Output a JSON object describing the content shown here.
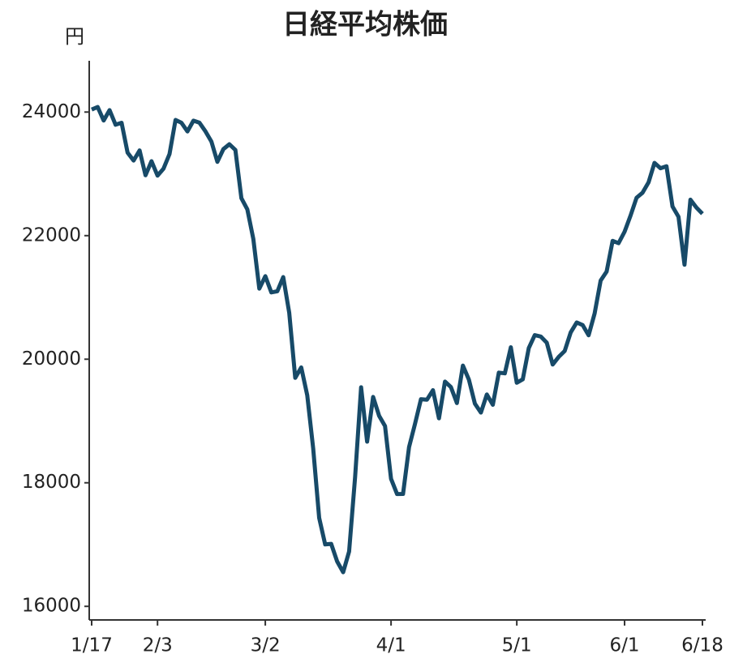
{
  "chart_data": {
    "type": "line",
    "title": "日経平均株価",
    "y_unit": "円",
    "categories": [
      "1/17",
      null,
      null,
      null,
      null,
      null,
      null,
      null,
      null,
      null,
      null,
      "2/3",
      null,
      null,
      null,
      null,
      null,
      null,
      null,
      null,
      null,
      null,
      null,
      null,
      null,
      null,
      null,
      null,
      null,
      "3/2",
      null,
      null,
      null,
      null,
      null,
      null,
      null,
      null,
      null,
      null,
      null,
      null,
      null,
      null,
      null,
      null,
      null,
      null,
      null,
      null,
      "4/1",
      null,
      null,
      null,
      null,
      null,
      null,
      null,
      null,
      null,
      null,
      null,
      null,
      null,
      null,
      null,
      null,
      null,
      null,
      null,
      null,
      "5/1",
      null,
      null,
      null,
      null,
      null,
      null,
      null,
      null,
      null,
      null,
      null,
      null,
      null,
      null,
      null,
      null,
      null,
      "6/1",
      null,
      null,
      null,
      null,
      null,
      null,
      null,
      null,
      null,
      null,
      null,
      null,
      "6/18"
    ],
    "series": [
      {
        "name": "日経平均株価",
        "color": "#174a68",
        "values": [
          24041,
          24083,
          23864,
          24031,
          23795,
          23827,
          23343,
          23216,
          23379,
          22977,
          23205,
          22971,
          23084,
          23320,
          23873,
          23827,
          23686,
          23861,
          23828,
          23687,
          23523,
          23194,
          23400,
          23479,
          23386,
          22605,
          22426,
          21948,
          21142,
          21344,
          21082,
          21100,
          21329,
          20749,
          19698,
          19867,
          19416,
          18559,
          17431,
          17002,
          17011,
          16726,
          16552,
          16887,
          18092,
          19546,
          18665,
          19389,
          19084,
          18917,
          18065,
          17818,
          17820,
          18576,
          18950,
          19353,
          19345,
          19498,
          19043,
          19638,
          19550,
          19290,
          19897,
          19669,
          19280,
          19137,
          19429,
          19262,
          19783,
          19771,
          20193,
          19619,
          19674,
          20179,
          20390,
          20366,
          20267,
          19914,
          20037,
          20133,
          20433,
          20595,
          20552,
          20388,
          20741,
          21271,
          21419,
          21916,
          21877,
          22062,
          22325,
          22613,
          22695,
          22863,
          23178,
          23091,
          23124,
          22472,
          22305,
          21530,
          22582,
          22455,
          22355
        ]
      }
    ],
    "ylim": [
      15780,
      24830
    ],
    "yticks": [
      16000,
      18000,
      20000,
      22000,
      24000
    ]
  }
}
